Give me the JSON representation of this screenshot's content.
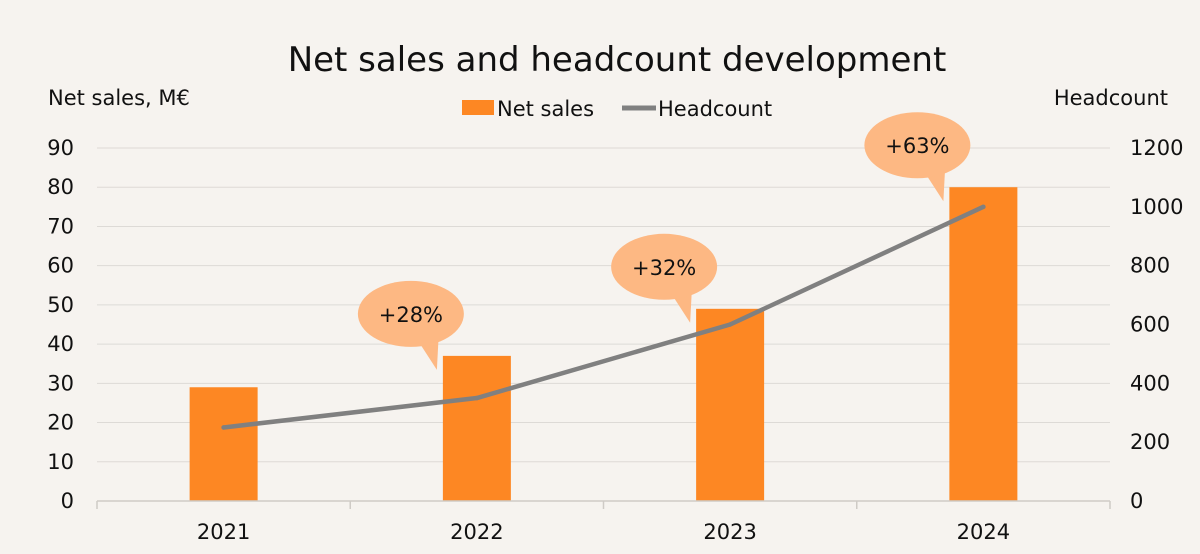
{
  "chart_data": {
    "type": "bar",
    "title": "Net sales and headcount development",
    "categories": [
      "2021",
      "2022",
      "2023",
      "2024"
    ],
    "ylabel_left": "Net sales, M€",
    "ylabel_right": "Headcount",
    "ylim_left": [
      0,
      90
    ],
    "ylim_right": [
      0,
      1200
    ],
    "yticks_left": [
      0,
      10,
      20,
      30,
      40,
      50,
      60,
      70,
      80,
      90
    ],
    "yticks_right": [
      0,
      200,
      400,
      600,
      800,
      1000,
      1200
    ],
    "series": [
      {
        "name": "Net sales",
        "type": "bar",
        "axis": "left",
        "values": [
          29,
          37,
          49,
          80
        ]
      },
      {
        "name": "Headcount",
        "type": "line",
        "axis": "right",
        "values": [
          250,
          350,
          600,
          1000
        ]
      }
    ],
    "annotations": [
      {
        "category": "2022",
        "text": "+28%"
      },
      {
        "category": "2023",
        "text": "+32%"
      },
      {
        "category": "2024",
        "text": "+63%"
      }
    ],
    "legend_position": "top-center",
    "grid": true,
    "colors": {
      "bar": "#fd8723",
      "line": "#808080",
      "bubble": "#fdb883",
      "grid": "#dddad6",
      "background": "#f6f3ef"
    }
  }
}
